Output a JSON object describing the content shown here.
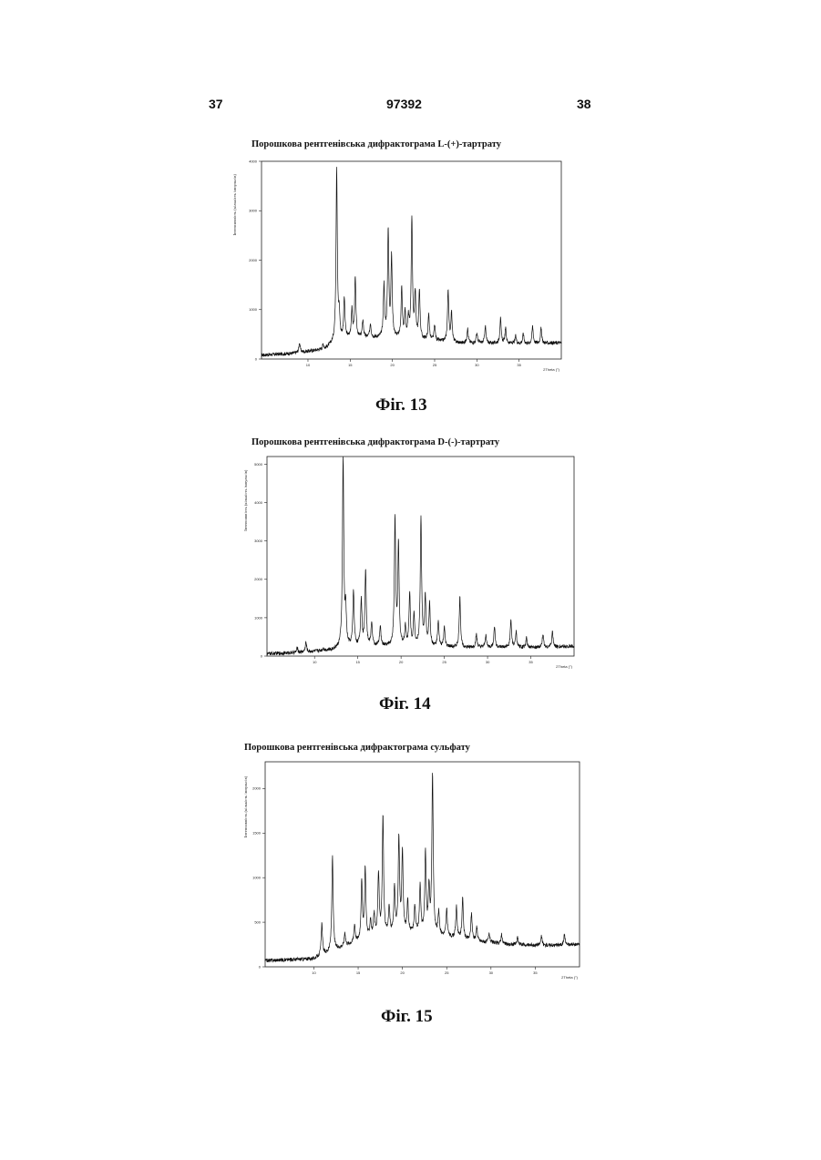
{
  "header": {
    "left_page": "37",
    "patent_number": "97392",
    "right_page": "38"
  },
  "figures": [
    {
      "title": "Порошкова рентгенівська дифрактограма L-(+)-тартрату",
      "caption": "Фіг. 13"
    },
    {
      "title": "Порошкова рентгенівська дифрактограма D-(-)-тартрату",
      "caption": "Фіг. 14"
    },
    {
      "title": "Порошкова рентгенівська дифрактограма сульфату",
      "caption": "Фіг. 15"
    }
  ],
  "chart_data": [
    {
      "type": "line",
      "title": "Порошкова рентгенівська дифрактограма L-(+)-тартрату",
      "xlabel": "2Theta (°)",
      "ylabel": "Інтенсивність (кількість імпульсів)",
      "xlim": [
        4.5,
        40
      ],
      "ylim": [
        0,
        4000
      ],
      "xticks": [
        "10",
        "15",
        "20",
        "25",
        "30",
        "35"
      ],
      "yticks": [
        "0",
        "1000",
        "2000",
        "3000",
        "4000"
      ],
      "grid": false,
      "baseline": [
        [
          4.5,
          80
        ],
        [
          8.0,
          110
        ],
        [
          12.0,
          200
        ],
        [
          13.0,
          320
        ],
        [
          14.5,
          420
        ],
        [
          17.0,
          430
        ],
        [
          20.0,
          430
        ],
        [
          24.0,
          380
        ],
        [
          28.0,
          320
        ],
        [
          32.0,
          320
        ],
        [
          36.0,
          310
        ],
        [
          40.0,
          330
        ]
      ],
      "peaks": [
        [
          9.0,
          200
        ],
        [
          11.8,
          100
        ],
        [
          13.4,
          3500
        ],
        [
          13.7,
          500
        ],
        [
          14.3,
          800
        ],
        [
          15.2,
          550
        ],
        [
          15.6,
          1200
        ],
        [
          16.5,
          350
        ],
        [
          17.4,
          280
        ],
        [
          19.0,
          1050
        ],
        [
          19.5,
          2150
        ],
        [
          19.9,
          1600
        ],
        [
          21.1,
          1000
        ],
        [
          21.5,
          500
        ],
        [
          21.9,
          380
        ],
        [
          22.3,
          2430
        ],
        [
          22.7,
          900
        ],
        [
          23.2,
          980
        ],
        [
          24.3,
          520
        ],
        [
          25.0,
          300
        ],
        [
          26.6,
          1050
        ],
        [
          27.0,
          600
        ],
        [
          28.9,
          300
        ],
        [
          30.0,
          200
        ],
        [
          31.0,
          350
        ],
        [
          32.8,
          500
        ],
        [
          33.4,
          300
        ],
        [
          34.6,
          150
        ],
        [
          35.5,
          200
        ],
        [
          36.6,
          350
        ],
        [
          37.6,
          300
        ]
      ]
    },
    {
      "type": "line",
      "title": "Порошкова рентгенівська дифрактограма D-(-)-тартрату",
      "xlabel": "2Theta (°)",
      "ylabel": "Інтенсивність (кількість імпульсів)",
      "xlim": [
        4.5,
        40
      ],
      "ylim": [
        0,
        5200
      ],
      "xticks": [
        "10",
        "15",
        "20",
        "25",
        "30",
        "35"
      ],
      "yticks": [
        "0",
        "1000",
        "2000",
        "3000",
        "4000",
        "5000"
      ],
      "grid": false,
      "baseline": [
        [
          4.5,
          60
        ],
        [
          8.0,
          90
        ],
        [
          12.0,
          160
        ],
        [
          13.0,
          220
        ],
        [
          15.0,
          260
        ],
        [
          20.0,
          260
        ],
        [
          24.0,
          240
        ],
        [
          28.0,
          220
        ],
        [
          32.0,
          220
        ],
        [
          36.0,
          220
        ],
        [
          40.0,
          260
        ]
      ],
      "peaks": [
        [
          8.0,
          120
        ],
        [
          9.0,
          250
        ],
        [
          11.0,
          60
        ],
        [
          13.3,
          4950
        ],
        [
          13.6,
          900
        ],
        [
          14.5,
          1450
        ],
        [
          15.4,
          1200
        ],
        [
          15.9,
          2000
        ],
        [
          16.6,
          600
        ],
        [
          17.6,
          500
        ],
        [
          19.3,
          3300
        ],
        [
          19.7,
          2600
        ],
        [
          20.5,
          500
        ],
        [
          21.0,
          1350
        ],
        [
          21.5,
          800
        ],
        [
          22.3,
          3350
        ],
        [
          22.8,
          1300
        ],
        [
          23.3,
          1100
        ],
        [
          24.3,
          650
        ],
        [
          25.0,
          500
        ],
        [
          26.8,
          1300
        ],
        [
          28.7,
          350
        ],
        [
          29.8,
          320
        ],
        [
          30.8,
          550
        ],
        [
          32.7,
          700
        ],
        [
          33.3,
          400
        ],
        [
          34.5,
          250
        ],
        [
          36.4,
          350
        ],
        [
          37.5,
          400
        ]
      ]
    },
    {
      "type": "line",
      "title": "Порошкова рентгенівська дифрактограма сульфату",
      "xlabel": "2Theta (°)",
      "ylabel": "Інтенсивність (кількість імпульсів)",
      "xlim": [
        4.5,
        40
      ],
      "ylim": [
        0,
        2300
      ],
      "xticks": [
        "10",
        "15",
        "20",
        "25",
        "30",
        "35"
      ],
      "yticks": [
        "0",
        "500",
        "1000",
        "1500",
        "2000"
      ],
      "grid": false,
      "baseline": [
        [
          4.5,
          70
        ],
        [
          10.0,
          90
        ],
        [
          11.5,
          150
        ],
        [
          14.0,
          250
        ],
        [
          17.0,
          330
        ],
        [
          20.0,
          380
        ],
        [
          24.0,
          350
        ],
        [
          28.0,
          290
        ],
        [
          32.0,
          250
        ],
        [
          36.0,
          240
        ],
        [
          40.0,
          250
        ]
      ],
      "peaks": [
        [
          10.9,
          350
        ],
        [
          12.1,
          1060
        ],
        [
          13.5,
          150
        ],
        [
          14.6,
          200
        ],
        [
          15.4,
          650
        ],
        [
          15.8,
          800
        ],
        [
          16.4,
          200
        ],
        [
          16.8,
          250
        ],
        [
          17.3,
          700
        ],
        [
          17.8,
          1330
        ],
        [
          18.5,
          300
        ],
        [
          19.1,
          500
        ],
        [
          19.6,
          1050
        ],
        [
          20.0,
          900
        ],
        [
          20.6,
          350
        ],
        [
          21.4,
          300
        ],
        [
          22.0,
          550
        ],
        [
          22.6,
          900
        ],
        [
          23.0,
          500
        ],
        [
          23.4,
          1800
        ],
        [
          24.1,
          250
        ],
        [
          25.0,
          300
        ],
        [
          26.1,
          350
        ],
        [
          26.8,
          450
        ],
        [
          27.8,
          300
        ],
        [
          28.4,
          150
        ],
        [
          29.8,
          100
        ],
        [
          31.2,
          100
        ],
        [
          33.0,
          80
        ],
        [
          35.7,
          100
        ],
        [
          38.3,
          120
        ]
      ]
    }
  ]
}
